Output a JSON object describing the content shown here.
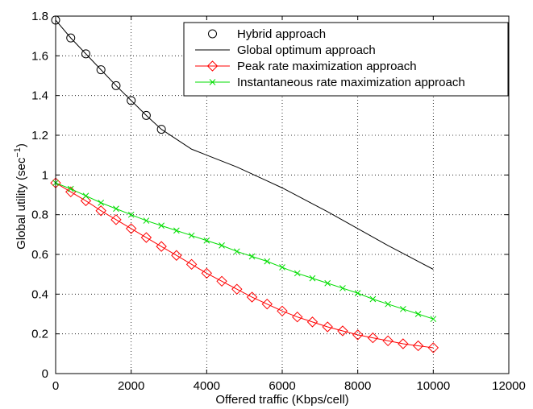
{
  "chart_data": {
    "type": "line",
    "title": "",
    "xlabel": "Offered traffic (Kbps/cell)",
    "ylabel": "Global utility (sec",
    "ylabel_sup": "−1",
    "ylabel_close": ")",
    "xlim": [
      0,
      12000
    ],
    "ylim": [
      0,
      1.8
    ],
    "xticks": [
      0,
      2000,
      4000,
      6000,
      8000,
      10000,
      12000
    ],
    "yticks": [
      0,
      0.2,
      0.4,
      0.6,
      0.8,
      1,
      1.2,
      1.4,
      1.6,
      1.8
    ],
    "xtick_labels": [
      "0",
      "2000",
      "4000",
      "6000",
      "8000",
      "10000",
      "12000"
    ],
    "ytick_labels": [
      "0",
      "0.2",
      "0.4",
      "0.6",
      "0.8",
      "1",
      "1.2",
      "1.4",
      "1.6",
      "1.8"
    ],
    "grid": true,
    "grid_style": "dotted",
    "legend_position": "top-right",
    "series": [
      {
        "name": "Hybrid approach",
        "color": "#000000",
        "marker": "circle",
        "line": false,
        "x": [
          0,
          400,
          800,
          1200,
          1600,
          2000,
          2400,
          2800
        ],
        "y": [
          1.78,
          1.69,
          1.61,
          1.53,
          1.45,
          1.375,
          1.3,
          1.23
        ]
      },
      {
        "name": "Global optimum approach",
        "color": "#000000",
        "marker": "none",
        "line": true,
        "x": [
          0,
          400,
          800,
          1200,
          1600,
          2000,
          2400,
          2800,
          3200,
          3600,
          4000,
          4800,
          5600,
          6000,
          6400,
          7200,
          8000,
          8800,
          9600,
          10000
        ],
        "y": [
          1.78,
          1.69,
          1.61,
          1.53,
          1.45,
          1.375,
          1.3,
          1.23,
          1.18,
          1.13,
          1.1,
          1.04,
          0.97,
          0.935,
          0.895,
          0.815,
          0.73,
          0.645,
          0.565,
          0.525
        ]
      },
      {
        "name": "Peak rate maximization approach",
        "color": "#ff0000",
        "marker": "diamond",
        "line": true,
        "x": [
          0,
          400,
          800,
          1200,
          1600,
          2000,
          2400,
          2800,
          3200,
          3600,
          4000,
          4400,
          4800,
          5200,
          5600,
          6000,
          6400,
          6800,
          7200,
          7600,
          8000,
          8400,
          8800,
          9200,
          9600,
          10000
        ],
        "y": [
          0.96,
          0.915,
          0.87,
          0.82,
          0.775,
          0.73,
          0.685,
          0.64,
          0.595,
          0.55,
          0.505,
          0.465,
          0.425,
          0.385,
          0.35,
          0.315,
          0.285,
          0.26,
          0.235,
          0.215,
          0.195,
          0.18,
          0.165,
          0.15,
          0.14,
          0.13
        ]
      },
      {
        "name": "Instantaneous rate maximization approach",
        "color": "#00dd00",
        "marker": "x",
        "line": true,
        "x": [
          0,
          400,
          800,
          1200,
          1600,
          2000,
          2400,
          2800,
          3200,
          3600,
          4000,
          4400,
          4800,
          5200,
          5600,
          6000,
          6400,
          6800,
          7200,
          7600,
          8000,
          8400,
          8800,
          9200,
          9600,
          10000
        ],
        "y": [
          0.96,
          0.93,
          0.895,
          0.86,
          0.83,
          0.8,
          0.77,
          0.745,
          0.72,
          0.695,
          0.67,
          0.645,
          0.615,
          0.59,
          0.565,
          0.535,
          0.505,
          0.48,
          0.455,
          0.43,
          0.405,
          0.375,
          0.35,
          0.325,
          0.3,
          0.275
        ]
      }
    ]
  }
}
